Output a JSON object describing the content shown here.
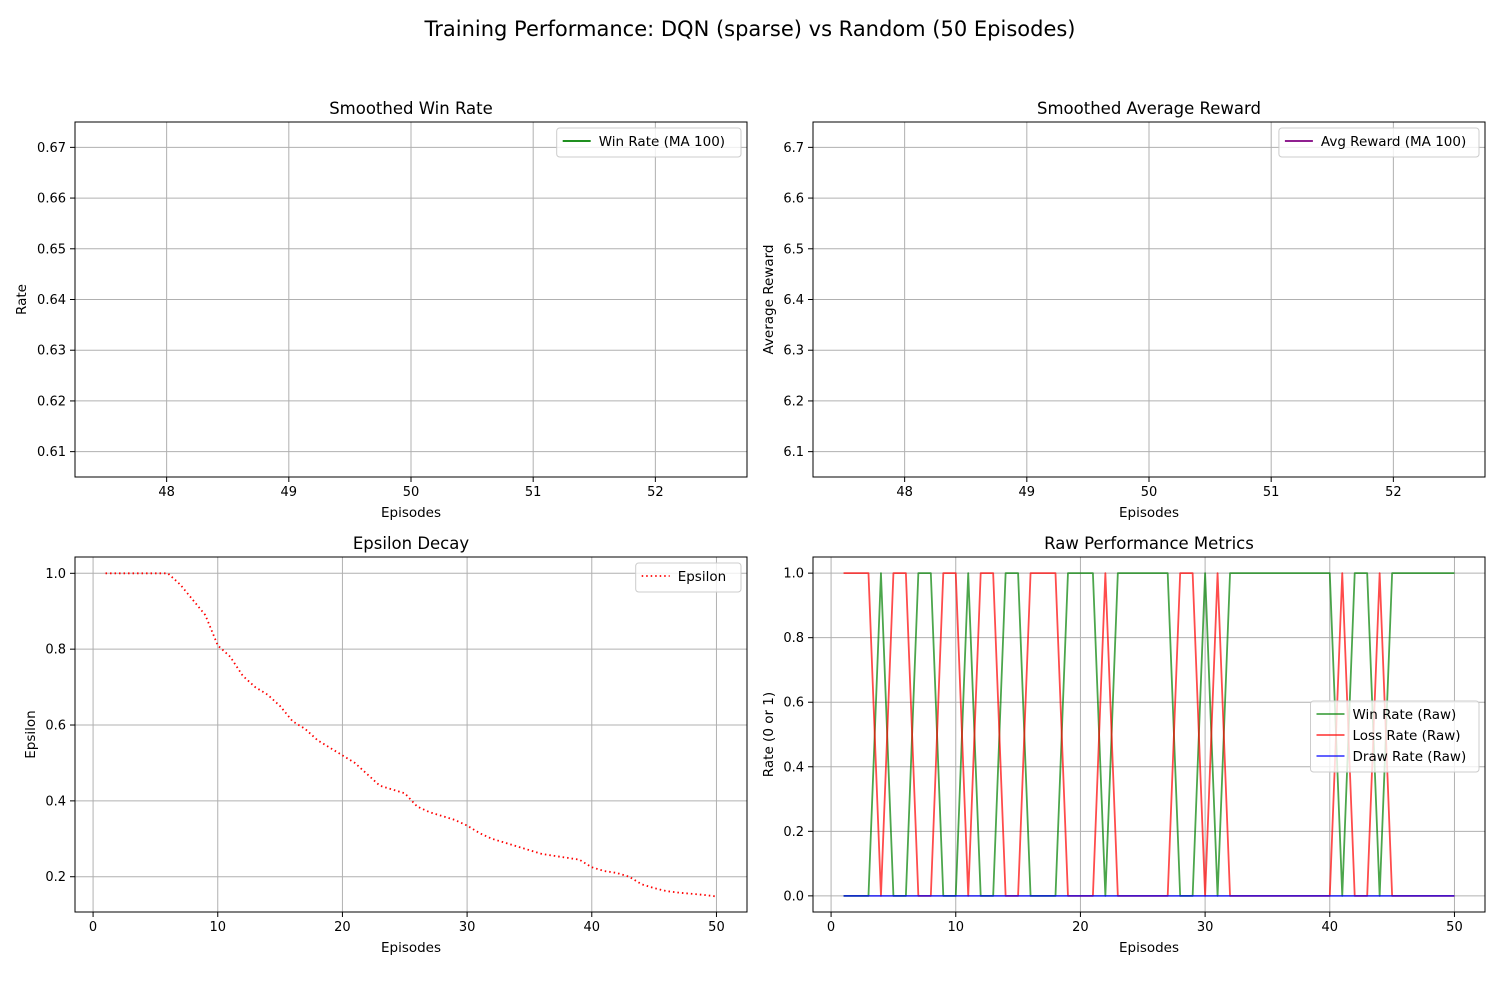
{
  "suptitle": "Training Performance: DQN (sparse) vs Random (50 Episodes)",
  "chart_data": [
    {
      "type": "line",
      "title": "Smoothed Win Rate",
      "xlabel": "Episodes",
      "ylabel": "Rate",
      "xlim": [
        47.25,
        52.75
      ],
      "ylim": [
        0.605,
        0.675
      ],
      "xticks": [
        48,
        49,
        50,
        51,
        52
      ],
      "yticks": [
        0.61,
        0.62,
        0.63,
        0.64,
        0.65,
        0.66,
        0.67
      ],
      "ytick_labels": [
        "0.61",
        "0.62",
        "0.63",
        "0.64",
        "0.65",
        "0.66",
        "0.67"
      ],
      "grid": true,
      "legend_position": "top-right",
      "series": [
        {
          "name": "Win Rate (MA 100)",
          "color": "#008000",
          "style": "solid",
          "x": [],
          "y": []
        }
      ]
    },
    {
      "type": "line",
      "title": "Smoothed Average Reward",
      "xlabel": "Episodes",
      "ylabel": "Average Reward",
      "xlim": [
        47.25,
        52.75
      ],
      "ylim": [
        6.05,
        6.75
      ],
      "xticks": [
        48,
        49,
        50,
        51,
        52
      ],
      "yticks": [
        6.1,
        6.2,
        6.3,
        6.4,
        6.5,
        6.6,
        6.7
      ],
      "ytick_labels": [
        "6.1",
        "6.2",
        "6.3",
        "6.4",
        "6.5",
        "6.6",
        "6.7"
      ],
      "grid": true,
      "legend_position": "top-right",
      "series": [
        {
          "name": "Avg Reward (MA 100)",
          "color": "#800080",
          "style": "solid",
          "x": [],
          "y": []
        }
      ]
    },
    {
      "type": "line",
      "title": "Epsilon Decay",
      "xlabel": "Episodes",
      "ylabel": "Epsilon",
      "xlim": [
        -1.45,
        52.45
      ],
      "ylim": [
        0.107,
        1.043
      ],
      "xticks": [
        0,
        10,
        20,
        30,
        40,
        50
      ],
      "yticks": [
        0.2,
        0.4,
        0.6,
        0.8,
        1.0
      ],
      "ytick_labels": [
        "0.2",
        "0.4",
        "0.6",
        "0.8",
        "1.0"
      ],
      "grid": true,
      "legend_position": "top-right",
      "series": [
        {
          "name": "Epsilon",
          "color": "#ff0000",
          "style": "dotted",
          "x": [
            1,
            2,
            3,
            4,
            5,
            6,
            7,
            8,
            9,
            10,
            11,
            12,
            13,
            14,
            15,
            16,
            17,
            18,
            19,
            20,
            21,
            22,
            23,
            24,
            25,
            26,
            27,
            28,
            29,
            30,
            31,
            32,
            33,
            34,
            35,
            36,
            37,
            38,
            39,
            40,
            41,
            42,
            43,
            44,
            45,
            46,
            47,
            48,
            49,
            50
          ],
          "y": [
            1.0,
            1.0,
            1.0,
            1.0,
            1.0,
            1.0,
            0.97,
            0.93,
            0.89,
            0.81,
            0.78,
            0.73,
            0.7,
            0.68,
            0.65,
            0.61,
            0.59,
            0.56,
            0.54,
            0.52,
            0.5,
            0.47,
            0.44,
            0.43,
            0.42,
            0.385,
            0.37,
            0.36,
            0.35,
            0.335,
            0.315,
            0.3,
            0.29,
            0.28,
            0.27,
            0.26,
            0.255,
            0.25,
            0.245,
            0.225,
            0.215,
            0.21,
            0.2,
            0.18,
            0.17,
            0.162,
            0.158,
            0.155,
            0.152,
            0.148
          ]
        }
      ]
    },
    {
      "type": "line",
      "title": "Raw Performance Metrics",
      "xlabel": "Episodes",
      "ylabel": "Rate (0 or 1)",
      "xlim": [
        -1.45,
        52.45
      ],
      "ylim": [
        -0.05,
        1.05
      ],
      "xticks": [
        0,
        10,
        20,
        30,
        40,
        50
      ],
      "yticks": [
        0.0,
        0.2,
        0.4,
        0.6,
        0.8,
        1.0
      ],
      "ytick_labels": [
        "0.0",
        "0.2",
        "0.4",
        "0.6",
        "0.8",
        "1.0"
      ],
      "grid": true,
      "legend_position": "center-right",
      "series": [
        {
          "name": "Win Rate (Raw)",
          "color": "#008000",
          "style": "solid",
          "x": [
            1,
            2,
            3,
            4,
            5,
            6,
            7,
            8,
            9,
            10,
            11,
            12,
            13,
            14,
            15,
            16,
            17,
            18,
            19,
            20,
            21,
            22,
            23,
            24,
            25,
            26,
            27,
            28,
            29,
            30,
            31,
            32,
            33,
            34,
            35,
            36,
            37,
            38,
            39,
            40,
            41,
            42,
            43,
            44,
            45,
            46,
            47,
            48,
            49,
            50
          ],
          "y": [
            0,
            0,
            0,
            1,
            0,
            0,
            1,
            1,
            0,
            0,
            1,
            0,
            0,
            1,
            1,
            0,
            0,
            0,
            1,
            1,
            1,
            0,
            1,
            1,
            1,
            1,
            1,
            0,
            0,
            1,
            0,
            1,
            1,
            1,
            1,
            1,
            1,
            1,
            1,
            1,
            0,
            1,
            1,
            0,
            1,
            1,
            1,
            1,
            1,
            1
          ]
        },
        {
          "name": "Loss Rate (Raw)",
          "color": "#ff0000",
          "style": "solid",
          "x": [
            1,
            2,
            3,
            4,
            5,
            6,
            7,
            8,
            9,
            10,
            11,
            12,
            13,
            14,
            15,
            16,
            17,
            18,
            19,
            20,
            21,
            22,
            23,
            24,
            25,
            26,
            27,
            28,
            29,
            30,
            31,
            32,
            33,
            34,
            35,
            36,
            37,
            38,
            39,
            40,
            41,
            42,
            43,
            44,
            45,
            46,
            47,
            48,
            49,
            50
          ],
          "y": [
            1,
            1,
            1,
            0,
            1,
            1,
            0,
            0,
            1,
            1,
            0,
            1,
            1,
            0,
            0,
            1,
            1,
            1,
            0,
            0,
            0,
            1,
            0,
            0,
            0,
            0,
            0,
            1,
            1,
            0,
            1,
            0,
            0,
            0,
            0,
            0,
            0,
            0,
            0,
            0,
            1,
            0,
            0,
            1,
            0,
            0,
            0,
            0,
            0,
            0
          ]
        },
        {
          "name": "Draw Rate (Raw)",
          "color": "#0000ff",
          "style": "solid",
          "x": [
            1,
            2,
            3,
            4,
            5,
            6,
            7,
            8,
            9,
            10,
            11,
            12,
            13,
            14,
            15,
            16,
            17,
            18,
            19,
            20,
            21,
            22,
            23,
            24,
            25,
            26,
            27,
            28,
            29,
            30,
            31,
            32,
            33,
            34,
            35,
            36,
            37,
            38,
            39,
            40,
            41,
            42,
            43,
            44,
            45,
            46,
            47,
            48,
            49,
            50
          ],
          "y": [
            0,
            0,
            0,
            0,
            0,
            0,
            0,
            0,
            0,
            0,
            0,
            0,
            0,
            0,
            0,
            0,
            0,
            0,
            0,
            0,
            0,
            0,
            0,
            0,
            0,
            0,
            0,
            0,
            0,
            0,
            0,
            0,
            0,
            0,
            0,
            0,
            0,
            0,
            0,
            0,
            0,
            0,
            0,
            0,
            0,
            0,
            0,
            0,
            0,
            0
          ]
        }
      ]
    }
  ]
}
